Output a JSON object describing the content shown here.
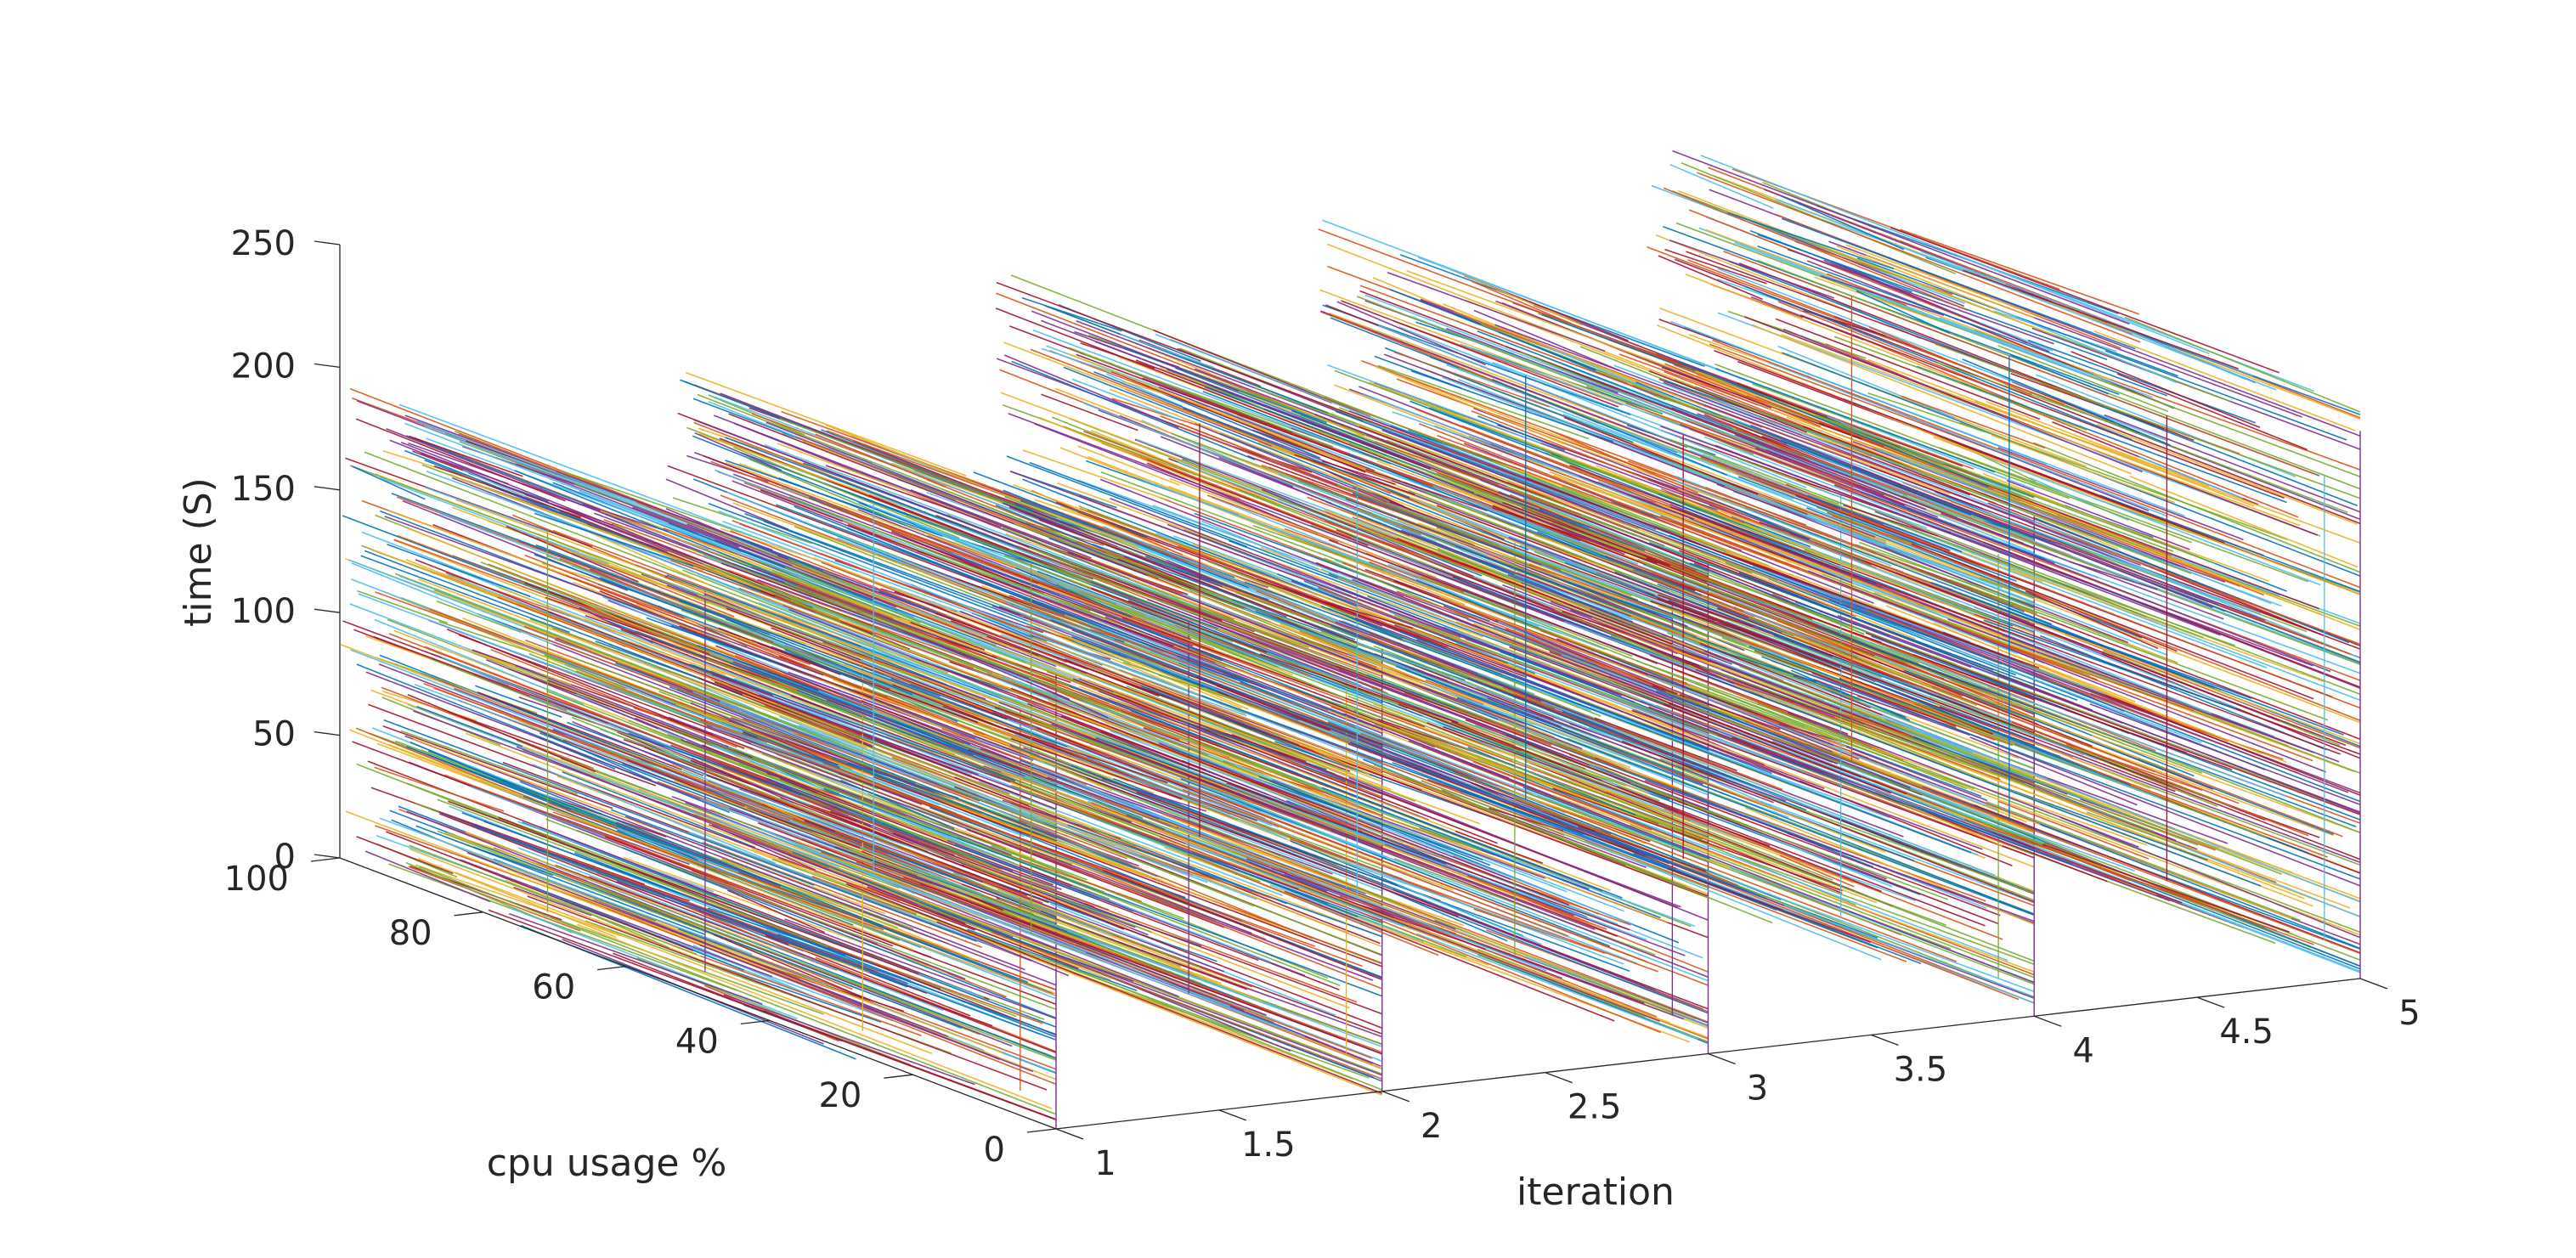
{
  "chart_data": {
    "type": "line3d",
    "title": "",
    "xlabel": "iteration",
    "ylabel": "cpu usage %",
    "zlabel": "time (S)",
    "xlim": [
      1,
      5
    ],
    "ylim": [
      0,
      100
    ],
    "zlim": [
      0,
      250
    ],
    "x_ticks": [
      "1",
      "1.5",
      "2",
      "2.5",
      "3",
      "3.5",
      "4",
      "4.5",
      "5"
    ],
    "y_ticks": [
      "0",
      "20",
      "40",
      "60",
      "80",
      "100"
    ],
    "z_ticks": [
      "0",
      "50",
      "100",
      "150",
      "200",
      "250"
    ],
    "grid": false,
    "colors": [
      "#0072BD",
      "#D95319",
      "#EDB120",
      "#7E2F8E",
      "#77AC30",
      "#4DBEEE",
      "#A2142F"
    ],
    "series": [
      {
        "iteration": 1,
        "time_range": [
          0,
          195
        ],
        "cpu_range": [
          0,
          100
        ],
        "segments_shown": "dense"
      },
      {
        "iteration": 2,
        "time_range": [
          0,
          190
        ],
        "cpu_range": [
          0,
          100
        ],
        "segments_shown": "dense"
      },
      {
        "iteration": 3,
        "time_range": [
          0,
          210
        ],
        "cpu_range": [
          0,
          100
        ],
        "segments_shown": "dense"
      },
      {
        "iteration": 4,
        "time_range": [
          0,
          215
        ],
        "cpu_range": [
          0,
          100
        ],
        "segments_shown": "dense"
      },
      {
        "iteration": 5,
        "time_range": [
          0,
          235
        ],
        "cpu_range": [
          0,
          100
        ],
        "segments_shown": "dense"
      }
    ]
  }
}
